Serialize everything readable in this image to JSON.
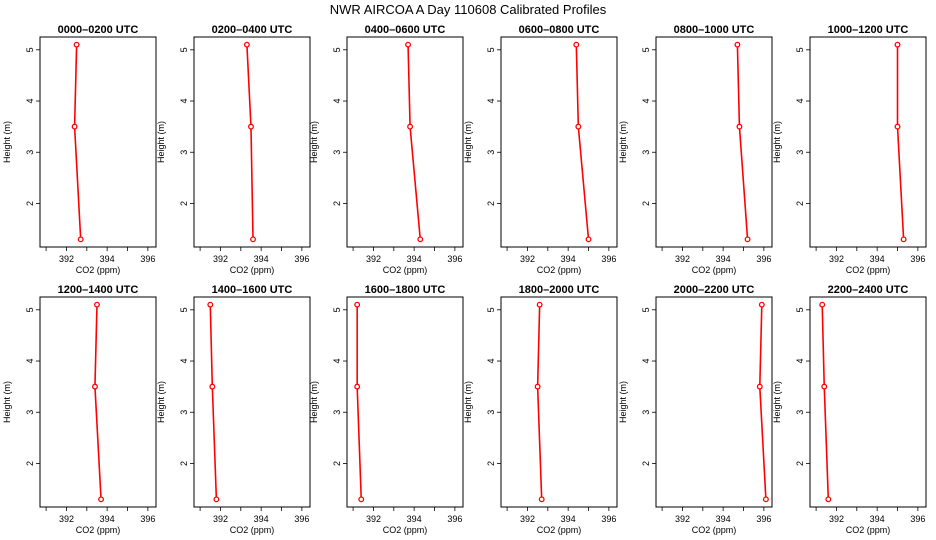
{
  "title": "NWR AIRCOA A  Day 110608  Calibrated Profiles",
  "xlabel": "CO2 (ppm)",
  "ylabel": "Height (m)",
  "line_color": "#ff0000",
  "chart_data": {
    "type": "line",
    "xlim": [
      390.7,
      396.4
    ],
    "ylim": [
      1.15,
      5.25
    ],
    "x_ticks": [
      392,
      394,
      396
    ],
    "y_ticks": [
      2,
      3,
      4,
      5
    ],
    "heights": [
      5.1,
      3.5,
      1.3
    ],
    "panels": [
      {
        "title": "0000–0200 UTC",
        "co2": [
          392.5,
          392.4,
          392.7
        ]
      },
      {
        "title": "0200–0400 UTC",
        "co2": [
          393.3,
          393.5,
          393.6
        ]
      },
      {
        "title": "0400–0600 UTC",
        "co2": [
          393.7,
          393.8,
          394.3
        ]
      },
      {
        "title": "0600–0800 UTC",
        "co2": [
          394.4,
          394.5,
          395.0
        ]
      },
      {
        "title": "0800–1000 UTC",
        "co2": [
          394.7,
          394.8,
          395.2
        ]
      },
      {
        "title": "1000–1200 UTC",
        "co2": [
          395.0,
          395.0,
          395.3
        ]
      },
      {
        "title": "1200–1400 UTC",
        "co2": [
          393.5,
          393.4,
          393.7
        ]
      },
      {
        "title": "1400–1600 UTC",
        "co2": [
          391.5,
          391.6,
          391.8
        ]
      },
      {
        "title": "1600–1800 UTC",
        "co2": [
          391.2,
          391.2,
          391.4
        ]
      },
      {
        "title": "1800–2000 UTC",
        "co2": [
          392.6,
          392.5,
          392.7
        ]
      },
      {
        "title": "2000–2200 UTC",
        "co2": [
          395.9,
          395.8,
          396.1
        ]
      },
      {
        "title": "2200–2400 UTC",
        "co2": [
          391.3,
          391.4,
          391.6
        ]
      }
    ]
  }
}
